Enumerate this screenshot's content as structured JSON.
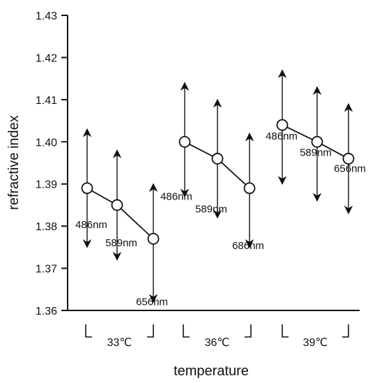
{
  "chart_data": {
    "type": "scatter",
    "xlabel": "temperature",
    "ylabel": "refractive index",
    "ylim": [
      1.36,
      1.43
    ],
    "yticks": [
      "1.36",
      "1.37",
      "1.38",
      "1.39",
      "1.40",
      "1.41",
      "1.42",
      "1.43"
    ],
    "grid": false,
    "legend": "none",
    "marker": "open-circle",
    "error_bars": "double-headed arrows",
    "groups": [
      {
        "label": "33℃",
        "points": [
          {
            "label": "486nm",
            "value": 1.389,
            "low": 1.375,
            "high": 1.403
          },
          {
            "label": "589nm",
            "value": 1.385,
            "low": 1.372,
            "high": 1.398
          },
          {
            "label": "656nm",
            "value": 1.377,
            "low": 1.362,
            "high": 1.39
          }
        ]
      },
      {
        "label": "36℃",
        "points": [
          {
            "label": "486nm",
            "value": 1.4,
            "low": 1.387,
            "high": 1.414
          },
          {
            "label": "589nm",
            "value": 1.396,
            "low": 1.382,
            "high": 1.41
          },
          {
            "label": "686nm",
            "value": 1.389,
            "low": 1.375,
            "high": 1.402
          }
        ]
      },
      {
        "label": "39℃",
        "points": [
          {
            "label": "486nm",
            "value": 1.404,
            "low": 1.39,
            "high": 1.417
          },
          {
            "label": "589nm",
            "value": 1.4,
            "low": 1.386,
            "high": 1.413
          },
          {
            "label": "656nm",
            "value": 1.396,
            "low": 1.383,
            "high": 1.409
          }
        ]
      }
    ]
  }
}
